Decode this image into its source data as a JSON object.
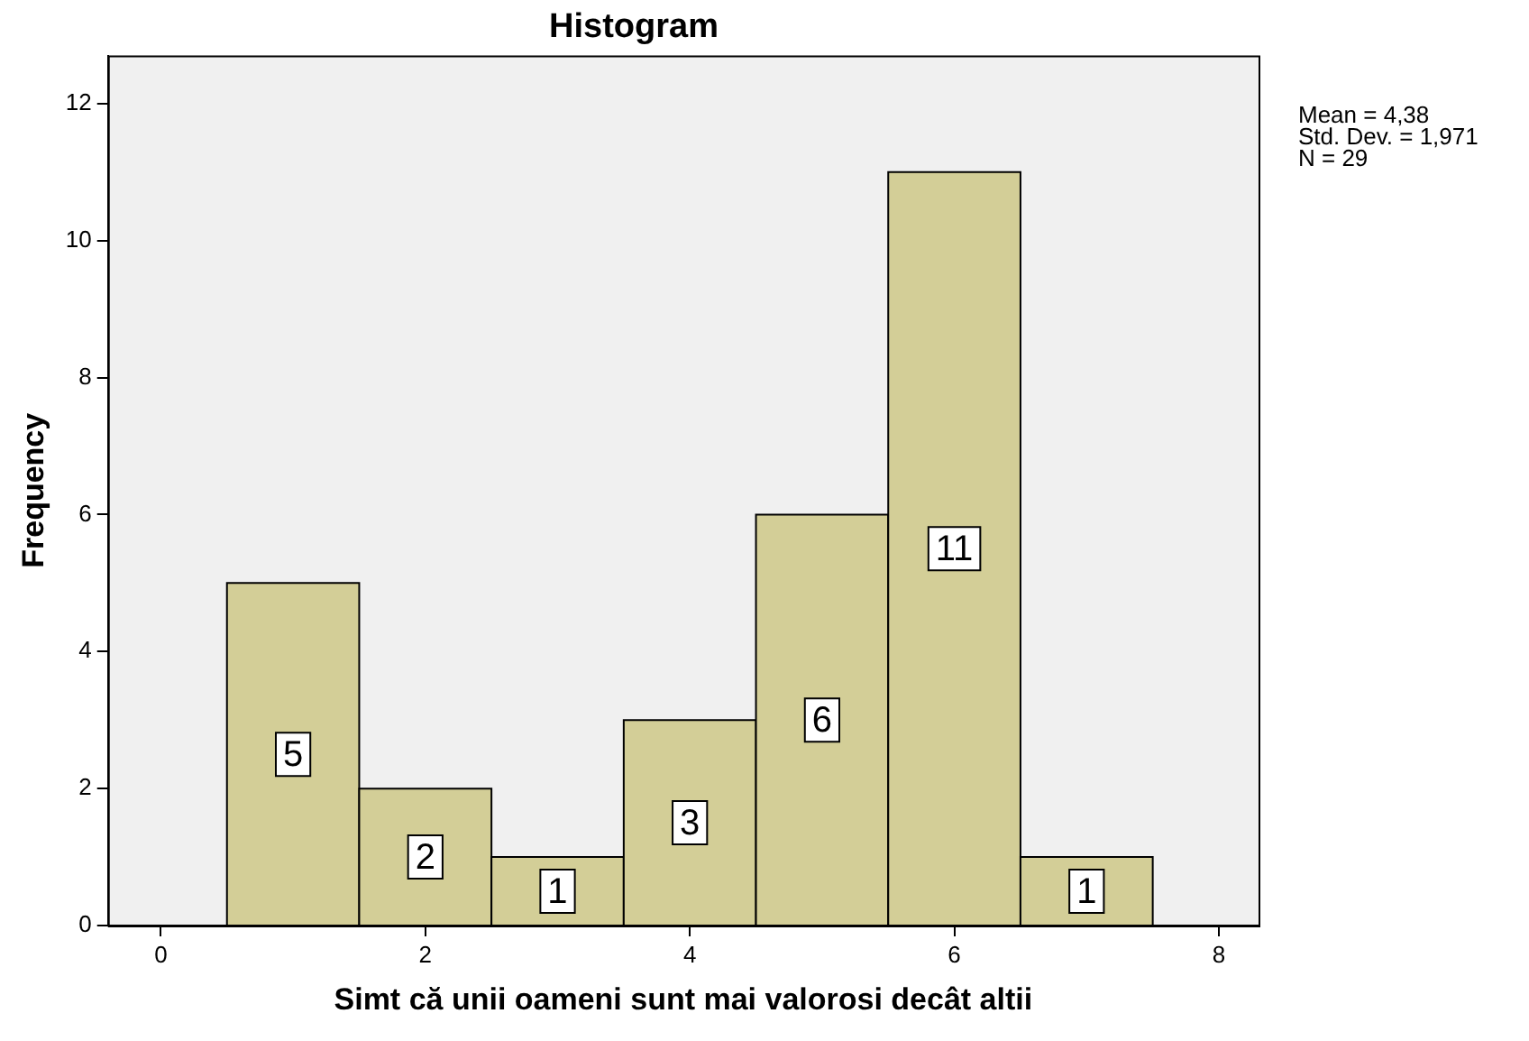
{
  "chart_data": {
    "type": "histogram",
    "title": "Histogram",
    "xlabel": "Simt că unii oameni sunt mai valorosi decât altii",
    "ylabel": "Frequency",
    "bins": [
      0.5,
      1.5,
      2.5,
      3.5,
      4.5,
      5.5,
      6.5,
      7.5
    ],
    "values": [
      5,
      2,
      1,
      3,
      6,
      11,
      1
    ],
    "color": "#d3ce97",
    "xlim": [
      -0.4,
      8.3
    ],
    "xticks": [
      0,
      2,
      4,
      6,
      8
    ],
    "ylim": [
      0,
      12.7
    ],
    "yticks": [
      0,
      2,
      4,
      6,
      8,
      10,
      12
    ],
    "grid": false,
    "legend": false,
    "data_labels": true,
    "annotations": [
      "Mean = 4,38",
      "Std. Dev. = 1,971",
      "N = 29"
    ]
  }
}
